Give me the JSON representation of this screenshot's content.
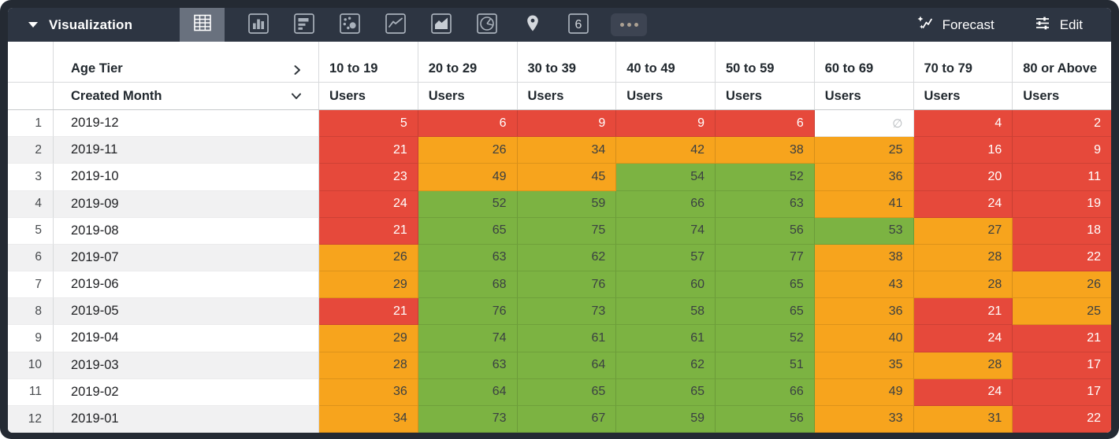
{
  "toolbar": {
    "bg": "#2d3542",
    "selector_label": "Visualization",
    "selected_chart_type": "table",
    "chart_types": [
      "table",
      "column-chart",
      "bar-chart",
      "scatter-plot",
      "line-chart",
      "area-chart",
      "pie-chart",
      "map",
      "single-value",
      "more-options"
    ],
    "single_value_glyph": "6",
    "forecast_label": "Forecast",
    "edit_label": "Edit"
  },
  "table": {
    "pivot_field_label": "Age Tier",
    "row_field_label": "Created Month",
    "measure_label": "Users",
    "age_tiers": [
      "10 to 19",
      "20 to 29",
      "30 to 39",
      "40 to 49",
      "50 to 59",
      "60 to 69",
      "70 to 79",
      "80 or Above"
    ],
    "null_symbol": "∅",
    "colors": {
      "red": "#e6493b",
      "orange": "#f7a41d",
      "green": "#7cb342"
    },
    "thresholds": {
      "red_below": 25,
      "green_from": 50
    },
    "rows": [
      {
        "index": 1,
        "month": "2019-12",
        "values": [
          5,
          6,
          9,
          9,
          6,
          null,
          4,
          2
        ]
      },
      {
        "index": 2,
        "month": "2019-11",
        "values": [
          21,
          26,
          34,
          42,
          38,
          25,
          16,
          9
        ]
      },
      {
        "index": 3,
        "month": "2019-10",
        "values": [
          23,
          49,
          45,
          54,
          52,
          36,
          20,
          11
        ]
      },
      {
        "index": 4,
        "month": "2019-09",
        "values": [
          24,
          52,
          59,
          66,
          63,
          41,
          24,
          19
        ]
      },
      {
        "index": 5,
        "month": "2019-08",
        "values": [
          21,
          65,
          75,
          74,
          56,
          53,
          27,
          18
        ]
      },
      {
        "index": 6,
        "month": "2019-07",
        "values": [
          26,
          63,
          62,
          57,
          77,
          38,
          28,
          22
        ]
      },
      {
        "index": 7,
        "month": "2019-06",
        "values": [
          29,
          68,
          76,
          60,
          65,
          43,
          28,
          26
        ]
      },
      {
        "index": 8,
        "month": "2019-05",
        "values": [
          21,
          76,
          73,
          58,
          65,
          36,
          21,
          25
        ]
      },
      {
        "index": 9,
        "month": "2019-04",
        "values": [
          29,
          74,
          61,
          61,
          52,
          40,
          24,
          21
        ]
      },
      {
        "index": 10,
        "month": "2019-03",
        "values": [
          28,
          63,
          64,
          62,
          51,
          35,
          28,
          17
        ]
      },
      {
        "index": 11,
        "month": "2019-02",
        "values": [
          36,
          64,
          65,
          65,
          66,
          49,
          24,
          17
        ]
      },
      {
        "index": 12,
        "month": "2019-01",
        "values": [
          34,
          73,
          67,
          59,
          56,
          33,
          31,
          22
        ]
      }
    ]
  }
}
